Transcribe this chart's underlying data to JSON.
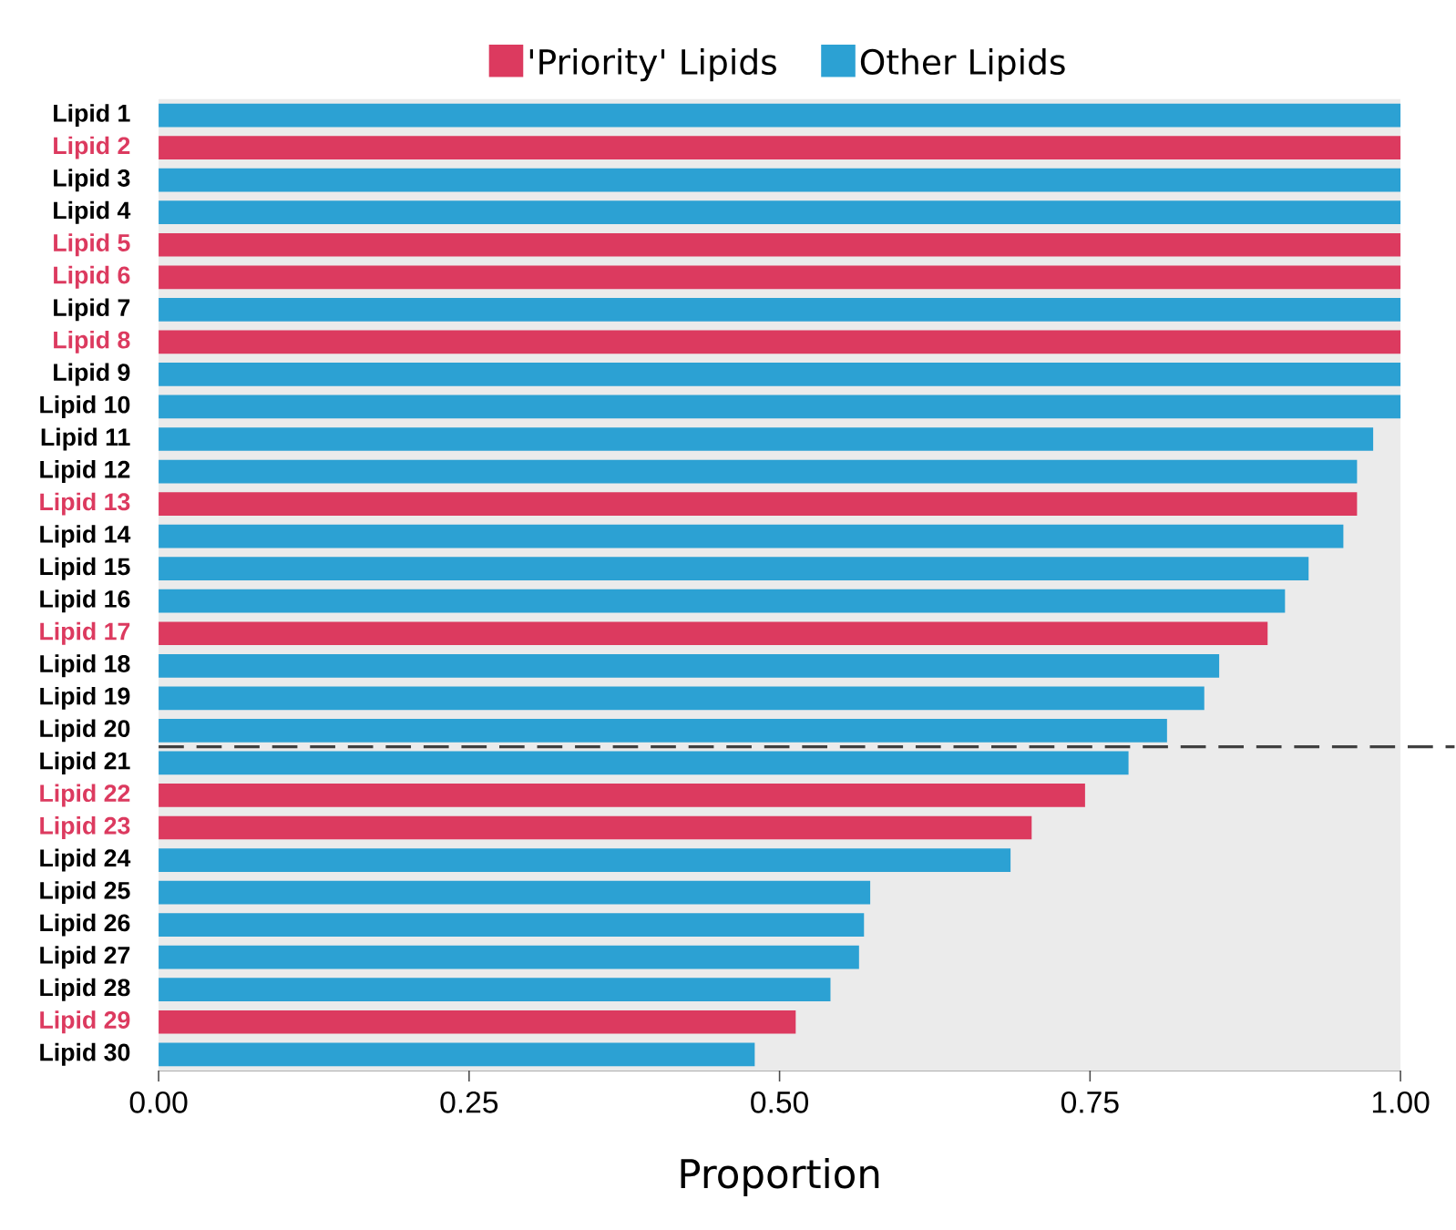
{
  "chart_data": {
    "type": "bar",
    "orientation": "horizontal",
    "xlabel": "Proportion",
    "categories": [
      "Lipid 1",
      "Lipid 2",
      "Lipid 3",
      "Lipid 4",
      "Lipid 5",
      "Lipid 6",
      "Lipid 7",
      "Lipid 8",
      "Lipid 9",
      "Lipid 10",
      "Lipid 11",
      "Lipid 12",
      "Lipid 13",
      "Lipid 14",
      "Lipid 15",
      "Lipid 16",
      "Lipid 17",
      "Lipid 18",
      "Lipid 19",
      "Lipid 20",
      "Lipid 21",
      "Lipid 22",
      "Lipid 23",
      "Lipid 24",
      "Lipid 25",
      "Lipid 26",
      "Lipid 27",
      "Lipid 28",
      "Lipid 29",
      "Lipid 30"
    ],
    "series": [
      {
        "name": "'Priority' Lipids",
        "color": "#dc3a5f",
        "values": [
          null,
          1.0,
          null,
          null,
          1.0,
          1.0,
          null,
          1.0,
          null,
          null,
          null,
          null,
          0.965,
          null,
          null,
          null,
          0.893,
          null,
          null,
          null,
          null,
          0.746,
          0.703,
          null,
          null,
          null,
          null,
          null,
          0.513,
          null
        ]
      },
      {
        "name": "Other Lipids",
        "color": "#2ca1d3",
        "values": [
          1.0,
          null,
          1.0,
          1.0,
          null,
          null,
          1.0,
          null,
          1.0,
          1.0,
          0.978,
          0.965,
          null,
          0.954,
          0.926,
          0.907,
          null,
          0.854,
          0.842,
          0.812,
          0.781,
          null,
          null,
          0.686,
          0.573,
          0.568,
          0.564,
          0.541,
          null,
          0.48
        ]
      }
    ],
    "xlim": [
      0,
      1
    ],
    "xticks": [
      {
        "value": 0,
        "label": "0.00"
      },
      {
        "value": 0.25,
        "label": "0.25"
      },
      {
        "value": 0.5,
        "label": "0.50"
      },
      {
        "value": 0.75,
        "label": "0.75"
      },
      {
        "value": 1,
        "label": "1.00"
      }
    ],
    "grid": false,
    "legend": "top"
  }
}
